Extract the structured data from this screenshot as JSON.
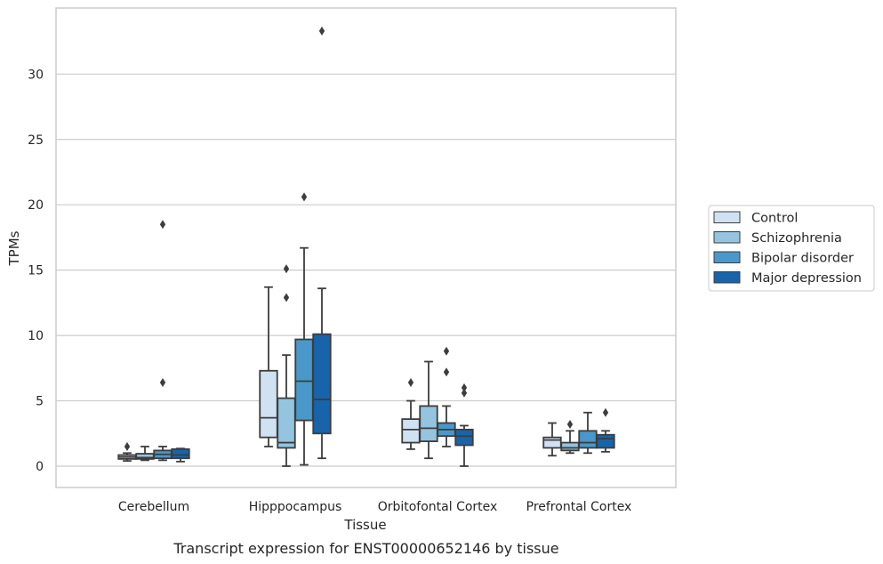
{
  "chart_data": {
    "type": "box",
    "title": "",
    "caption": "Transcript expression for ENST00000652146 by tissue",
    "xlabel": "Tissue",
    "ylabel": "TPMs",
    "ylim": [
      -1.6,
      35.2
    ],
    "yticks": [
      0,
      5,
      10,
      15,
      20,
      25,
      30
    ],
    "grid": "horizontal",
    "legend_position": "right",
    "categories": [
      "Cerebellum",
      "Hipppocampus",
      "Orbitofontal Cortex",
      "Prefrontal Cortex"
    ],
    "series": [
      {
        "name": "Control",
        "color": "#d0e1f2",
        "boxes": [
          {
            "whisker_low": 0.4,
            "q1": 0.55,
            "median": 0.7,
            "q3": 0.85,
            "whisker_high": 1.0,
            "outliers": [
              1.5
            ]
          },
          {
            "whisker_low": 1.5,
            "q1": 2.2,
            "median": 3.7,
            "q3": 7.3,
            "whisker_high": 13.7,
            "outliers": []
          },
          {
            "whisker_low": 1.3,
            "q1": 1.8,
            "median": 2.8,
            "q3": 3.6,
            "whisker_high": 5.0,
            "outliers": [
              6.4
            ]
          },
          {
            "whisker_low": 0.8,
            "q1": 1.4,
            "median": 2.0,
            "q3": 2.2,
            "whisker_high": 3.3,
            "outliers": []
          }
        ]
      },
      {
        "name": "Schizophrenia",
        "color": "#94c4df",
        "boxes": [
          {
            "whisker_low": 0.45,
            "q1": 0.55,
            "median": 0.65,
            "q3": 0.95,
            "whisker_high": 1.5,
            "outliers": []
          },
          {
            "whisker_low": 0.0,
            "q1": 1.4,
            "median": 1.8,
            "q3": 5.2,
            "whisker_high": 8.5,
            "outliers": [
              12.9,
              15.1
            ]
          },
          {
            "whisker_low": 0.6,
            "q1": 1.9,
            "median": 2.9,
            "q3": 4.6,
            "whisker_high": 8.0,
            "outliers": []
          },
          {
            "whisker_low": 1.0,
            "q1": 1.2,
            "median": 1.4,
            "q3": 1.8,
            "whisker_high": 2.7,
            "outliers": [
              3.2
            ]
          }
        ]
      },
      {
        "name": "Bipolar disorder",
        "color": "#4a98c9",
        "boxes": [
          {
            "whisker_low": 0.45,
            "q1": 0.6,
            "median": 0.9,
            "q3": 1.2,
            "whisker_high": 1.5,
            "outliers": [
              6.4,
              18.5
            ]
          },
          {
            "whisker_low": 0.1,
            "q1": 3.5,
            "median": 6.5,
            "q3": 9.7,
            "whisker_high": 16.7,
            "outliers": [
              20.6
            ]
          },
          {
            "whisker_low": 1.5,
            "q1": 2.3,
            "median": 2.8,
            "q3": 3.3,
            "whisker_high": 4.6,
            "outliers": [
              7.2,
              8.8
            ]
          },
          {
            "whisker_low": 1.0,
            "q1": 1.4,
            "median": 1.8,
            "q3": 2.7,
            "whisker_high": 4.1,
            "outliers": []
          }
        ]
      },
      {
        "name": "Major depression",
        "color": "#1764ab",
        "boxes": [
          {
            "whisker_low": 0.35,
            "q1": 0.6,
            "median": 0.85,
            "q3": 1.3,
            "whisker_high": 1.35,
            "outliers": []
          },
          {
            "whisker_low": 0.6,
            "q1": 2.5,
            "median": 5.1,
            "q3": 10.1,
            "whisker_high": 13.6,
            "outliers": [
              33.3
            ]
          },
          {
            "whisker_low": 0.0,
            "q1": 1.6,
            "median": 2.3,
            "q3": 2.8,
            "whisker_high": 3.1,
            "outliers": [
              5.6,
              6.0
            ]
          },
          {
            "whisker_low": 1.1,
            "q1": 1.4,
            "median": 2.1,
            "q3": 2.4,
            "whisker_high": 2.7,
            "outliers": [
              4.1
            ]
          }
        ]
      }
    ]
  }
}
